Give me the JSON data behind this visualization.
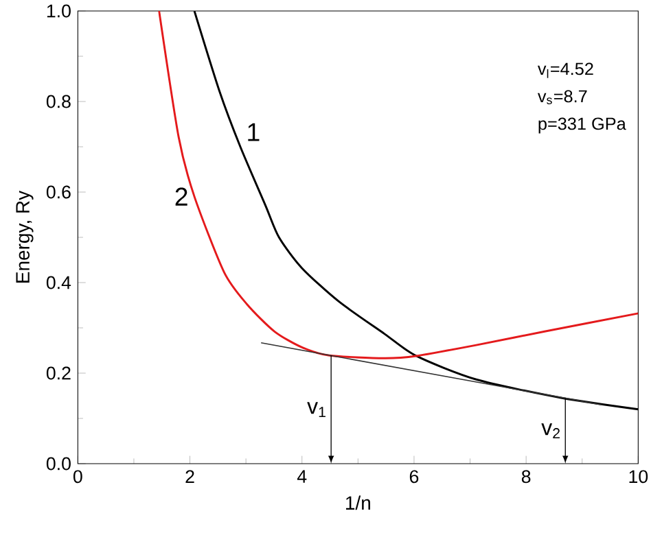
{
  "chart_data": {
    "type": "line",
    "xlabel": "1/n",
    "ylabel": "Energy, Ry",
    "xlim": [
      0,
      10
    ],
    "xticks": [
      0,
      2,
      4,
      6,
      8,
      10
    ],
    "ylim": [
      0,
      1.0
    ],
    "yticks": [
      {
        "value": 0,
        "label": "0.0"
      },
      0.2,
      0.4,
      0.6,
      0.8,
      {
        "value": 1.0,
        "label": "1.0"
      }
    ],
    "grid": false,
    "legend": false,
    "marker": "none",
    "line_style": "solid",
    "series": [
      {
        "name": "1",
        "color": "#000000",
        "x": [
          2.08,
          2.53,
          2.9,
          3.35,
          3.59,
          4.0,
          4.66,
          5.47,
          6.04,
          7.11,
          8.64,
          10.0
        ],
        "values": [
          1.0,
          0.822,
          0.7,
          0.57,
          0.5,
          0.432,
          0.358,
          0.287,
          0.238,
          0.186,
          0.145,
          0.12
        ]
      },
      {
        "name": "2",
        "color": "#e41a1c",
        "x": [
          1.45,
          1.8,
          2.08,
          2.61,
          3.02,
          3.51,
          4.0,
          4.49,
          5.47,
          6.04,
          7.11,
          8.33,
          10.0
        ],
        "values": [
          1.0,
          0.721,
          0.59,
          0.423,
          0.352,
          0.292,
          0.257,
          0.239,
          0.233,
          0.238,
          0.262,
          0.292,
          0.332
        ]
      },
      {
        "color": "#333333",
        "x": [
          3.27,
          9.35
        ],
        "values": [
          0.267,
          0.13
        ]
      }
    ],
    "annotations": [
      {
        "text": "v$_{1}$",
        "x": 4.52,
        "y": 0.239
      },
      {
        "text": "v$_{2}$",
        "x": 8.7,
        "y": 0.145
      },
      "v$_{l}$=4.52",
      "v$_{s}$=8.7",
      "p=331 GPa"
    ]
  }
}
